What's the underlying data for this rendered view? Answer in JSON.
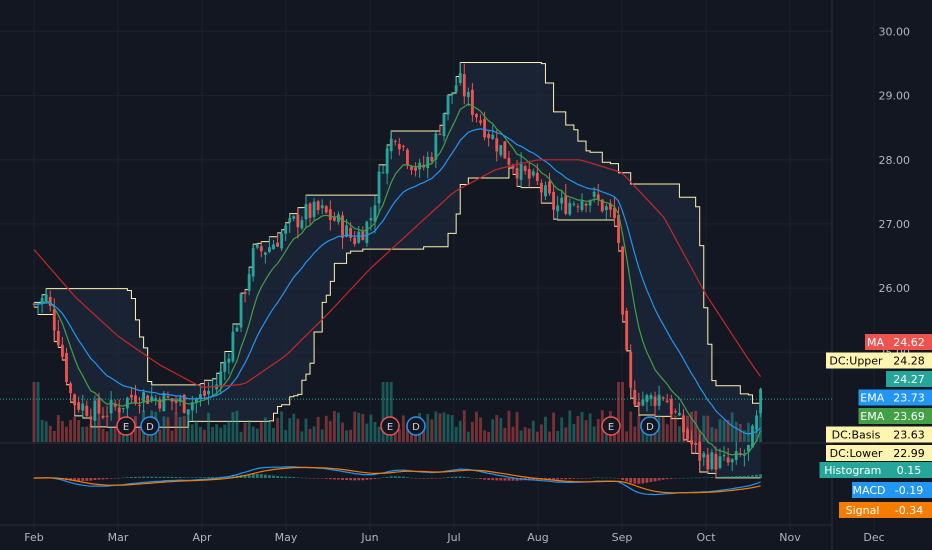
{
  "chart_data": {
    "type": "candlestick",
    "y_axis": {
      "range": [
        24.1,
        30.1
      ],
      "ticks": [
        "25.00",
        "26.00",
        "27.00",
        "28.00",
        "29.00",
        "30.00"
      ]
    },
    "x_axis": {
      "ticks": [
        "Feb",
        "Mar",
        "Apr",
        "May",
        "Jun",
        "Jul",
        "Aug",
        "Sep",
        "Oct",
        "Nov",
        "Dec"
      ]
    },
    "earnings_markers": [
      "E",
      "D",
      "E",
      "D",
      "E",
      "D"
    ],
    "price_tags": [
      {
        "label": "MA",
        "value": "24.62",
        "color": "#ef5350",
        "text_color": "#ffffff"
      },
      {
        "label": "DC:Upper",
        "value": "24.28",
        "color": "#fff4b0",
        "text_color": "#000000"
      },
      {
        "label": "",
        "value": "24.27",
        "color": "#26a69a",
        "text_color": "#ffffff"
      },
      {
        "label": "EMA",
        "value": "23.73",
        "color": "#2196f3",
        "text_color": "#ffffff"
      },
      {
        "label": "EMA",
        "value": "23.69",
        "color": "#43a047",
        "text_color": "#ffffff"
      },
      {
        "label": "DC:Basis",
        "value": "23.63",
        "color": "#fff4b0",
        "text_color": "#000000"
      },
      {
        "label": "DC:Lower",
        "value": "22.99",
        "color": "#fff4b0",
        "text_color": "#000000"
      }
    ],
    "macd_tags": [
      {
        "label": "Histogram",
        "value": "0.15",
        "color": "#26a69a",
        "text_color": "#ffffff"
      },
      {
        "label": "MACD",
        "value": "-0.19",
        "color": "#2196f3",
        "text_color": "#ffffff"
      },
      {
        "label": "Signal",
        "value": "-0.34",
        "color": "#f57c00",
        "text_color": "#ffffff"
      }
    ],
    "colors": {
      "background": "#131722",
      "grid": "#1e222d",
      "up": "#26a69a",
      "down": "#ef5350",
      "donchian": "#fff4b0",
      "ma": "#c62828",
      "ema_fast": "#43a047",
      "ema_slow": "#2196f3",
      "macd": "#2196f3",
      "signal": "#f57c00"
    },
    "close_path": [
      {
        "m": 0.0,
        "v": 25.75
      },
      {
        "m": 0.15,
        "v": 25.85
      },
      {
        "m": 0.3,
        "v": 25.2
      },
      {
        "m": 0.45,
        "v": 24.25
      },
      {
        "m": 0.6,
        "v": 24.15
      },
      {
        "m": 0.8,
        "v": 24.05
      },
      {
        "m": 1.0,
        "v": 24.15
      },
      {
        "m": 1.2,
        "v": 24.35
      },
      {
        "m": 1.4,
        "v": 24.3
      },
      {
        "m": 1.6,
        "v": 24.25
      },
      {
        "m": 1.8,
        "v": 24.2
      },
      {
        "m": 2.0,
        "v": 24.3
      },
      {
        "m": 2.2,
        "v": 24.55
      },
      {
        "m": 2.4,
        "v": 25.4
      },
      {
        "m": 2.6,
        "v": 26.5
      },
      {
        "m": 2.8,
        "v": 26.65
      },
      {
        "m": 3.0,
        "v": 26.9
      },
      {
        "m": 3.2,
        "v": 27.15
      },
      {
        "m": 3.4,
        "v": 27.2
      },
      {
        "m": 3.6,
        "v": 27.05
      },
      {
        "m": 3.8,
        "v": 26.75
      },
      {
        "m": 4.0,
        "v": 27.05
      },
      {
        "m": 4.15,
        "v": 27.95
      },
      {
        "m": 4.3,
        "v": 28.45
      },
      {
        "m": 4.45,
        "v": 28.05
      },
      {
        "m": 4.6,
        "v": 27.8
      },
      {
        "m": 4.75,
        "v": 28.15
      },
      {
        "m": 4.9,
        "v": 28.85
      },
      {
        "m": 5.05,
        "v": 29.25
      },
      {
        "m": 5.2,
        "v": 28.85
      },
      {
        "m": 5.4,
        "v": 28.45
      },
      {
        "m": 5.6,
        "v": 28.1
      },
      {
        "m": 5.8,
        "v": 27.8
      },
      {
        "m": 6.0,
        "v": 27.6
      },
      {
        "m": 6.2,
        "v": 27.25
      },
      {
        "m": 6.4,
        "v": 27.35
      },
      {
        "m": 6.6,
        "v": 27.45
      },
      {
        "m": 6.8,
        "v": 27.25
      },
      {
        "m": 6.95,
        "v": 27.0
      },
      {
        "m": 7.0,
        "v": 25.5
      },
      {
        "m": 7.1,
        "v": 24.35
      },
      {
        "m": 7.3,
        "v": 24.25
      },
      {
        "m": 7.5,
        "v": 24.35
      },
      {
        "m": 7.7,
        "v": 23.85
      },
      {
        "m": 7.9,
        "v": 23.4
      },
      {
        "m": 8.1,
        "v": 23.3
      },
      {
        "m": 8.3,
        "v": 23.25
      },
      {
        "m": 8.5,
        "v": 23.45
      },
      {
        "m": 8.6,
        "v": 23.9
      },
      {
        "m": 8.65,
        "v": 24.27
      }
    ],
    "ma_path": [
      {
        "m": 0.0,
        "v": 26.6
      },
      {
        "m": 0.5,
        "v": 25.85
      },
      {
        "m": 1.0,
        "v": 25.25
      },
      {
        "m": 1.5,
        "v": 24.8
      },
      {
        "m": 2.0,
        "v": 24.45
      },
      {
        "m": 2.5,
        "v": 24.5
      },
      {
        "m": 3.0,
        "v": 24.95
      },
      {
        "m": 3.5,
        "v": 25.6
      },
      {
        "m": 4.0,
        "v": 26.3
      },
      {
        "m": 4.5,
        "v": 26.9
      },
      {
        "m": 5.0,
        "v": 27.5
      },
      {
        "m": 5.5,
        "v": 27.85
      },
      {
        "m": 6.0,
        "v": 28.0
      },
      {
        "m": 6.5,
        "v": 28.0
      },
      {
        "m": 7.0,
        "v": 27.8
      },
      {
        "m": 7.5,
        "v": 27.1
      },
      {
        "m": 8.0,
        "v": 25.9
      },
      {
        "m": 8.5,
        "v": 24.9
      },
      {
        "m": 8.65,
        "v": 24.62
      }
    ]
  }
}
